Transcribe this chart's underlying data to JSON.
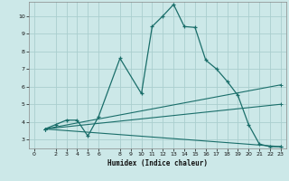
{
  "xlabel": "Humidex (Indice chaleur)",
  "bg_color": "#cce8e8",
  "grid_color": "#aacece",
  "line_color": "#1a6e6a",
  "xlim": [
    -0.5,
    23.5
  ],
  "ylim": [
    2.5,
    10.8
  ],
  "xticks": [
    0,
    2,
    3,
    4,
    5,
    6,
    8,
    9,
    10,
    11,
    12,
    13,
    14,
    15,
    16,
    17,
    18,
    19,
    20,
    21,
    22,
    23
  ],
  "yticks": [
    3,
    4,
    5,
    6,
    7,
    8,
    9,
    10
  ],
  "line1_x": [
    1,
    2,
    3,
    4,
    5,
    6,
    8,
    10,
    11,
    12,
    13,
    14,
    15,
    16,
    17,
    18,
    19,
    20,
    21,
    22,
    23
  ],
  "line1_y": [
    3.6,
    3.85,
    4.1,
    4.1,
    3.2,
    4.3,
    7.6,
    5.6,
    9.4,
    10.0,
    10.65,
    9.4,
    9.35,
    7.5,
    7.0,
    6.3,
    5.5,
    3.85,
    2.75,
    2.6,
    2.6
  ],
  "line2_x": [
    1,
    23
  ],
  "line2_y": [
    3.6,
    6.1
  ],
  "line3_x": [
    1,
    23
  ],
  "line3_y": [
    3.6,
    5.0
  ],
  "line4_x": [
    1,
    23
  ],
  "line4_y": [
    3.6,
    2.6
  ]
}
